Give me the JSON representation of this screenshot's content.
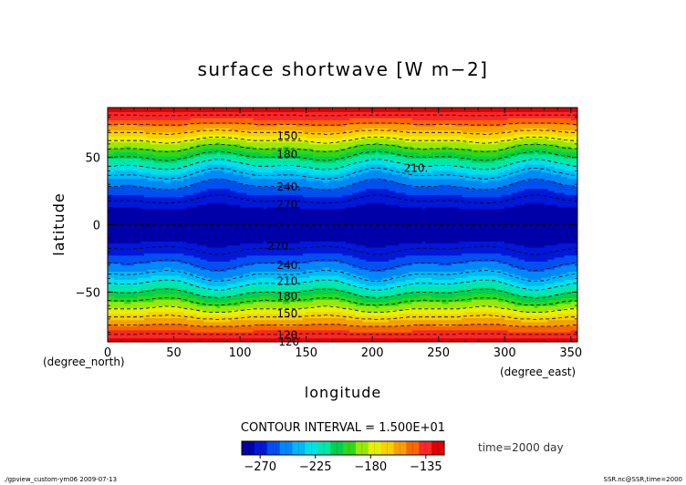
{
  "chart_data": {
    "type": "heatmap",
    "title": "surface shortwave [W m−2]",
    "xlabel": "longitude",
    "ylabel": "latitude",
    "x_unit": "(degree_east)",
    "y_unit": "(degree_north)",
    "xlim": [
      0,
      355
    ],
    "ylim": [
      -87,
      87
    ],
    "x_ticks": [
      "0",
      "50",
      "100",
      "150",
      "200",
      "250",
      "300",
      "350"
    ],
    "y_ticks": [
      "50",
      "0",
      "−50"
    ],
    "x_tick_values": [
      0,
      50,
      100,
      150,
      200,
      250,
      300,
      350
    ],
    "y_tick_values": [
      50,
      0,
      -50
    ],
    "contour_interval_text": "CONTOUR INTERVAL = 1.500E+01",
    "time_text": "time=2000 day",
    "colorbar_ticks": [
      "−270",
      "−225",
      "−180",
      "−135"
    ],
    "colorbar_tick_values": [
      -270,
      -225,
      -180,
      -135
    ],
    "colorbar_range": [
      -285,
      -120
    ],
    "color_levels": [
      "#0000a8",
      "#0018d8",
      "#0050f0",
      "#0088f8",
      "#00b8f8",
      "#00e0e8",
      "#00e8a8",
      "#00d050",
      "#30d818",
      "#98e808",
      "#e8f000",
      "#f8d000",
      "#f8a000",
      "#f86800",
      "#f82828",
      "#e00000"
    ],
    "contour_labels": [
      {
        "text": "120",
        "lon": 137,
        "lat": -87
      },
      {
        "text": "150.",
        "lon": 137,
        "lat": 66
      },
      {
        "text": "180.",
        "lon": 137,
        "lat": 52
      },
      {
        "text": "210.",
        "lon": 233,
        "lat": 42
      },
      {
        "text": "240.",
        "lon": 137,
        "lat": 28
      },
      {
        "text": "270.",
        "lon": 137,
        "lat": 15
      },
      {
        "text": "270.",
        "lon": 130,
        "lat": -16
      },
      {
        "text": "240.",
        "lon": 137,
        "lat": -30
      },
      {
        "text": "210.",
        "lon": 137,
        "lat": -42
      },
      {
        "text": "180.",
        "lon": 137,
        "lat": -53
      },
      {
        "text": "150.",
        "lon": 137,
        "lat": -66
      },
      {
        "text": "120.",
        "lon": 137,
        "lat": -82
      }
    ],
    "footer_left": "./gpview_custom-ym06  2009-07-13",
    "footer_right": "SSR.nc@SSR,time=2000"
  }
}
